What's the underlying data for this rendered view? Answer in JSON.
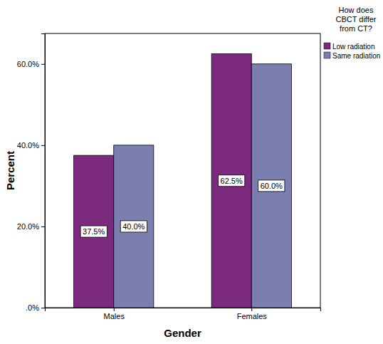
{
  "chart_data": {
    "type": "bar",
    "x_label": "Gender",
    "y_label": "Percent",
    "legend_title": "How does CBCT differ from CT?",
    "categories": [
      "Males",
      "Females"
    ],
    "series": [
      {
        "name": "Low radiation",
        "color": "#7c2a7e",
        "values": [
          37.5,
          62.5
        ],
        "value_labels": [
          "37.5%",
          "62.5%"
        ]
      },
      {
        "name": "Same radiation",
        "color": "#7a7fb0",
        "values": [
          40.0,
          60.0
        ],
        "value_labels": [
          "40.0%",
          "60.0%"
        ]
      }
    ],
    "ylim": [
      0,
      67.5
    ],
    "yticks": [
      {
        "value": 0,
        "label": ".0%"
      },
      {
        "value": 20,
        "label": "20.0%"
      },
      {
        "value": 40,
        "label": "40.0%"
      },
      {
        "value": 60,
        "label": "60.0%"
      }
    ],
    "grid": false,
    "legend": "upper right",
    "data_labels": true
  }
}
